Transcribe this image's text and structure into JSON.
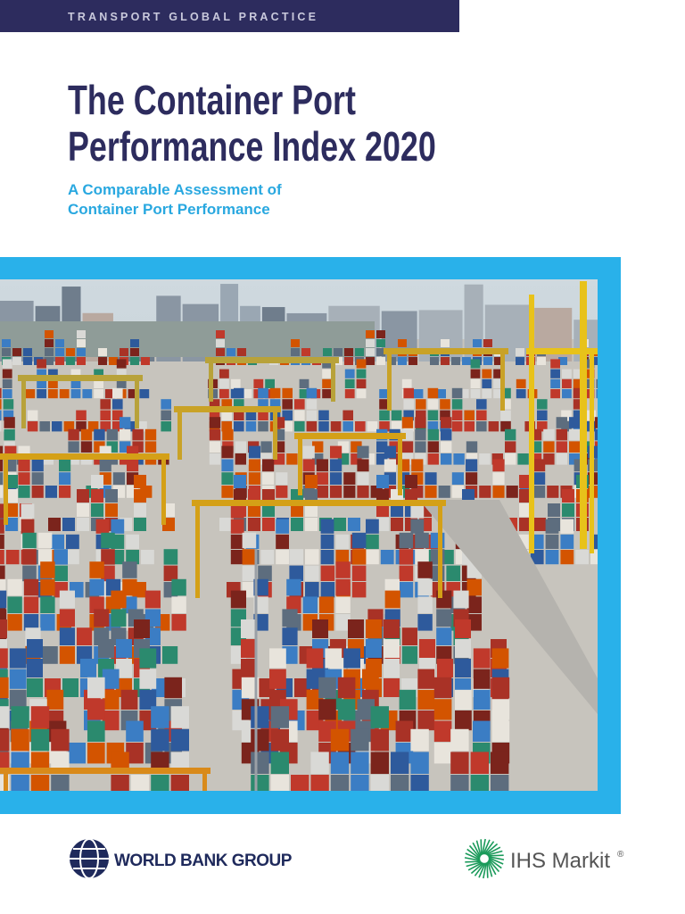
{
  "header": {
    "practice": "TRANSPORT GLOBAL PRACTICE"
  },
  "cover": {
    "title_lines": [
      "The Container Port",
      "Performance Index 2020"
    ],
    "subtitle_lines": [
      "A Comparable Assessment of",
      "Container Port Performance"
    ]
  },
  "footer": {
    "left_logo": "WORLD BANK GROUP",
    "right_logo": "IHS Markit",
    "right_logo_mark": "®"
  }
}
